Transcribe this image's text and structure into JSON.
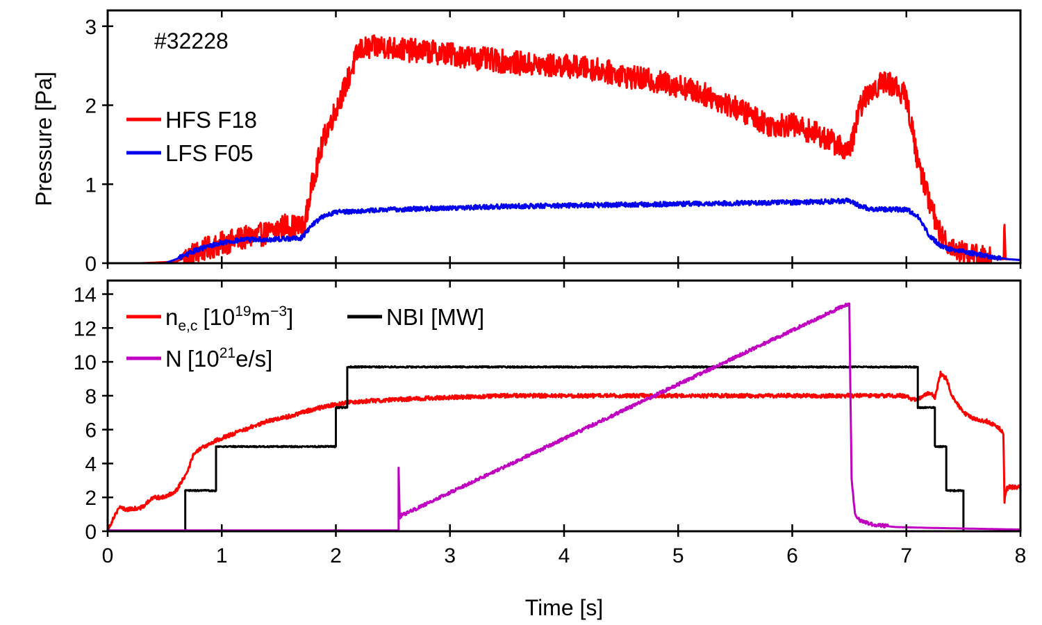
{
  "chart_data": [
    {
      "type": "line",
      "annotation": "#32228",
      "ylabel": "Pressure [Pa]",
      "xlim": [
        0,
        8
      ],
      "ylim": [
        0,
        3.2
      ],
      "xticks": [
        0,
        1,
        2,
        3,
        4,
        5,
        6,
        7,
        8
      ],
      "yticks": [
        0,
        1,
        2,
        3
      ],
      "legend_position": "left",
      "series": [
        {
          "name": "HFS F18",
          "color": "#ff0000",
          "noise": 0.15,
          "x": [
            0,
            0.3,
            0.6,
            0.8,
            1.0,
            1.2,
            1.4,
            1.55,
            1.72,
            1.8,
            1.9,
            2.0,
            2.1,
            2.2,
            2.4,
            2.6,
            2.8,
            3.0,
            3.2,
            3.5,
            3.8,
            4.0,
            4.3,
            4.6,
            5.0,
            5.3,
            5.6,
            5.8,
            6.0,
            6.2,
            6.4,
            6.5,
            6.6,
            6.7,
            6.8,
            6.9,
            7.0,
            7.1,
            7.2,
            7.3,
            7.4,
            7.6,
            7.8,
            7.85,
            7.86,
            7.87,
            7.9,
            8.0
          ],
          "y": [
            0.0,
            0.0,
            0.02,
            0.15,
            0.25,
            0.32,
            0.38,
            0.48,
            0.45,
            1.05,
            1.6,
            1.95,
            2.3,
            2.7,
            2.75,
            2.7,
            2.68,
            2.65,
            2.6,
            2.55,
            2.5,
            2.5,
            2.45,
            2.35,
            2.25,
            2.1,
            1.9,
            1.75,
            1.75,
            1.65,
            1.5,
            1.4,
            2.0,
            2.2,
            2.3,
            2.25,
            2.1,
            1.3,
            0.8,
            0.35,
            0.2,
            0.1,
            0.05,
            0.05,
            0.4,
            0.05,
            0.05,
            0.04
          ]
        },
        {
          "name": "LFS F05",
          "color": "#0000ee",
          "noise": 0.03,
          "x": [
            0,
            0.5,
            0.6,
            0.8,
            1.0,
            1.2,
            1.4,
            1.7,
            1.8,
            1.9,
            2.0,
            2.2,
            2.5,
            3.0,
            3.5,
            4.0,
            4.5,
            5.0,
            5.5,
            6.0,
            6.3,
            6.5,
            6.6,
            6.7,
            6.8,
            7.0,
            7.1,
            7.2,
            7.3,
            7.4,
            7.6,
            7.8,
            7.9,
            8.0
          ],
          "y": [
            0.0,
            0.0,
            0.05,
            0.18,
            0.26,
            0.3,
            0.3,
            0.32,
            0.5,
            0.6,
            0.65,
            0.66,
            0.68,
            0.7,
            0.72,
            0.73,
            0.74,
            0.75,
            0.76,
            0.77,
            0.78,
            0.79,
            0.72,
            0.68,
            0.68,
            0.68,
            0.6,
            0.35,
            0.22,
            0.17,
            0.12,
            0.07,
            0.05,
            0.04
          ]
        }
      ]
    },
    {
      "type": "line",
      "xlabel": "Time [s]",
      "xlim": [
        0,
        8
      ],
      "ylim": [
        0,
        14.8
      ],
      "xticks": [
        0,
        1,
        2,
        3,
        4,
        5,
        6,
        7,
        8
      ],
      "yticks": [
        0,
        2,
        4,
        6,
        8,
        10,
        12,
        14
      ],
      "legend_position": "top-left",
      "series": [
        {
          "name": "n_e,c [10^19 m^-3]",
          "label_parts": {
            "base": "n",
            "sub": "e,c",
            "bracket_open": "[10",
            "exp": "19",
            "unit": "m",
            "unit_exp": "−3",
            "bracket_close": "]"
          },
          "color": "#ff0000",
          "noise": 0.12,
          "x": [
            0,
            0.05,
            0.1,
            0.15,
            0.2,
            0.3,
            0.4,
            0.5,
            0.6,
            0.7,
            0.75,
            0.8,
            0.9,
            1.0,
            1.2,
            1.4,
            1.6,
            1.8,
            2.0,
            2.1,
            2.3,
            2.6,
            3.0,
            3.5,
            4.0,
            4.5,
            5.0,
            5.5,
            6.0,
            6.5,
            7.0,
            7.05,
            7.1,
            7.2,
            7.25,
            7.3,
            7.35,
            7.4,
            7.5,
            7.6,
            7.7,
            7.8,
            7.85,
            7.86,
            7.88,
            7.9,
            8.0
          ],
          "y": [
            0,
            0.8,
            1.4,
            1.3,
            1.3,
            1.4,
            2.0,
            2.0,
            2.4,
            3.5,
            4.5,
            4.8,
            5.2,
            5.5,
            6.0,
            6.5,
            6.8,
            7.2,
            7.5,
            7.6,
            7.7,
            7.8,
            7.9,
            8.0,
            8.0,
            8.0,
            8.0,
            8.0,
            8.0,
            8.0,
            8.0,
            7.8,
            7.8,
            8.2,
            7.9,
            9.3,
            9.0,
            8.0,
            7.0,
            6.6,
            6.5,
            6.2,
            5.8,
            1.8,
            2.5,
            2.6,
            2.6
          ]
        },
        {
          "name": "NBI [MW]",
          "color": "#000000",
          "noise": 0.04,
          "x": [
            0,
            0.68,
            0.68,
            0.95,
            0.95,
            2.0,
            2.0,
            2.1,
            2.1,
            7.1,
            7.1,
            7.25,
            7.25,
            7.35,
            7.35,
            7.5,
            7.5,
            8.0
          ],
          "y": [
            0,
            0,
            2.4,
            2.4,
            5.0,
            5.0,
            7.3,
            7.3,
            9.7,
            9.7,
            7.3,
            7.3,
            5.0,
            5.0,
            2.4,
            2.4,
            0,
            0
          ]
        },
        {
          "name": "N [10^21 e/s]",
          "label_parts": {
            "base": "N",
            "bracket_open": "[10",
            "exp": "21",
            "unit": "e/s",
            "bracket_close": "]"
          },
          "color": "#c000c0",
          "noise": 0.1,
          "x": [
            0,
            2.55,
            2.55,
            2.56,
            2.58,
            2.6,
            6.48,
            6.5,
            6.52,
            6.55,
            6.6,
            6.7,
            6.9,
            7.2,
            8.0
          ],
          "y": [
            0.05,
            0.05,
            3.7,
            0.8,
            1.0,
            1.0,
            13.4,
            13.4,
            3.0,
            1.0,
            0.6,
            0.4,
            0.25,
            0.2,
            0.1
          ]
        }
      ]
    }
  ]
}
